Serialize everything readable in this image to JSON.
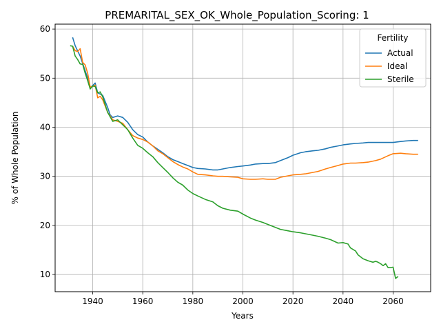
{
  "chart_data": {
    "type": "line",
    "title": "PREMARITAL_SEX_OK_Whole_Population_Scoring: 1",
    "xlabel": "Years",
    "ylabel": "% of Whole Population",
    "xlim": [
      1925,
      2075
    ],
    "ylim": [
      6.5,
      61
    ],
    "xticks": [
      1940,
      1960,
      1980,
      2000,
      2020,
      2040,
      2060
    ],
    "yticks": [
      10,
      20,
      30,
      40,
      50,
      60
    ],
    "grid": true,
    "legend": {
      "title": "Fertility",
      "placement": "top-right"
    },
    "series": [
      {
        "name": "Actual",
        "color": "#1f77b4",
        "x": [
          1932,
          1933,
          1935,
          1937,
          1938,
          1939,
          1940,
          1941,
          1942,
          1944,
          1946,
          1947,
          1948,
          1950,
          1952,
          1954,
          1956,
          1958,
          1960,
          1962,
          1964,
          1966,
          1968,
          1970,
          1972,
          1974,
          1976,
          1978,
          1980,
          1982,
          1985,
          1988,
          1990,
          1992,
          1995,
          1998,
          2000,
          2003,
          2005,
          2008,
          2010,
          2013,
          2015,
          2018,
          2020,
          2023,
          2025,
          2028,
          2030,
          2033,
          2035,
          2038,
          2040,
          2043,
          2045,
          2048,
          2050,
          2053,
          2055,
          2058,
          2060,
          2063,
          2065,
          2068,
          2070
        ],
        "values": [
          58.3,
          56.6,
          54.5,
          51.5,
          50.0,
          48.0,
          48.5,
          49.0,
          47.0,
          46.5,
          44.0,
          42.5,
          42.0,
          42.3,
          42.0,
          41.0,
          39.5,
          38.5,
          38.0,
          37.0,
          36.2,
          35.5,
          34.8,
          34.0,
          33.4,
          33.0,
          32.6,
          32.2,
          31.8,
          31.6,
          31.5,
          31.3,
          31.3,
          31.5,
          31.8,
          32.0,
          32.1,
          32.3,
          32.5,
          32.6,
          32.6,
          32.8,
          33.2,
          33.8,
          34.3,
          34.8,
          35.0,
          35.2,
          35.3,
          35.6,
          35.9,
          36.2,
          36.4,
          36.6,
          36.7,
          36.8,
          36.9,
          36.9,
          36.9,
          36.9,
          36.9,
          37.1,
          37.2,
          37.3,
          37.3
        ]
      },
      {
        "name": "Ideal",
        "color": "#ff7f0e",
        "x": [
          1932,
          1933,
          1934,
          1935,
          1936,
          1937,
          1938,
          1939,
          1940,
          1941,
          1942,
          1943,
          1944,
          1946,
          1947,
          1948,
          1950,
          1952,
          1954,
          1956,
          1958,
          1960,
          1962,
          1964,
          1966,
          1968,
          1970,
          1972,
          1974,
          1976,
          1978,
          1980,
          1982,
          1985,
          1988,
          1990,
          1992,
          1995,
          1998,
          2000,
          2003,
          2005,
          2008,
          2010,
          2013,
          2015,
          2018,
          2020,
          2023,
          2025,
          2028,
          2030,
          2033,
          2035,
          2038,
          2040,
          2043,
          2045,
          2048,
          2050,
          2053,
          2055,
          2058,
          2060,
          2063,
          2065,
          2068,
          2070
        ],
        "values": [
          56.5,
          55.6,
          55.4,
          56.0,
          53.2,
          52.7,
          51.0,
          48.2,
          48.3,
          48.6,
          46.0,
          46.3,
          45.6,
          43.0,
          42.3,
          41.5,
          41.2,
          40.8,
          39.5,
          38.3,
          37.8,
          37.5,
          37.0,
          36.2,
          35.2,
          34.6,
          33.8,
          33.0,
          32.4,
          31.9,
          31.5,
          30.9,
          30.4,
          30.3,
          30.1,
          30.0,
          30.0,
          29.9,
          29.8,
          29.5,
          29.4,
          29.4,
          29.5,
          29.4,
          29.4,
          29.8,
          30.1,
          30.3,
          30.4,
          30.5,
          30.8,
          31.0,
          31.5,
          31.8,
          32.2,
          32.5,
          32.7,
          32.7,
          32.8,
          32.9,
          33.2,
          33.5,
          34.2,
          34.6,
          34.7,
          34.6,
          34.5,
          34.5
        ]
      },
      {
        "name": "Sterile",
        "color": "#2ca02c",
        "x": [
          1931,
          1932,
          1933,
          1934,
          1935,
          1936,
          1937,
          1938,
          1939,
          1940,
          1941,
          1942,
          1943,
          1944,
          1946,
          1948,
          1950,
          1952,
          1954,
          1956,
          1958,
          1960,
          1962,
          1964,
          1966,
          1968,
          1970,
          1972,
          1974,
          1976,
          1978,
          1980,
          1982,
          1985,
          1988,
          1990,
          1992,
          1995,
          1998,
          2000,
          2003,
          2005,
          2008,
          2010,
          2013,
          2015,
          2018,
          2020,
          2023,
          2025,
          2028,
          2030,
          2033,
          2035,
          2038,
          2040,
          2042,
          2043,
          2045,
          2046,
          2048,
          2050,
          2052,
          2053,
          2054,
          2055,
          2056,
          2057,
          2058,
          2059,
          2060,
          2061,
          2062
        ],
        "values": [
          56.6,
          56.5,
          54.5,
          53.8,
          52.9,
          52.8,
          51.0,
          49.5,
          47.8,
          48.4,
          48.3,
          47.0,
          47.2,
          46.2,
          43.0,
          41.2,
          41.5,
          40.5,
          39.5,
          37.8,
          36.3,
          35.7,
          34.8,
          34.0,
          32.8,
          31.8,
          30.8,
          29.7,
          28.8,
          28.2,
          27.2,
          26.5,
          26.0,
          25.3,
          24.8,
          24.0,
          23.5,
          23.1,
          22.9,
          22.3,
          21.5,
          21.1,
          20.6,
          20.2,
          19.6,
          19.2,
          18.9,
          18.7,
          18.5,
          18.3,
          18.0,
          17.8,
          17.4,
          17.1,
          16.4,
          16.5,
          16.2,
          15.4,
          14.8,
          14.0,
          13.2,
          12.8,
          12.5,
          12.7,
          12.5,
          12.2,
          11.8,
          12.2,
          11.4,
          11.4,
          11.5,
          9.2,
          9.6
        ]
      }
    ]
  }
}
